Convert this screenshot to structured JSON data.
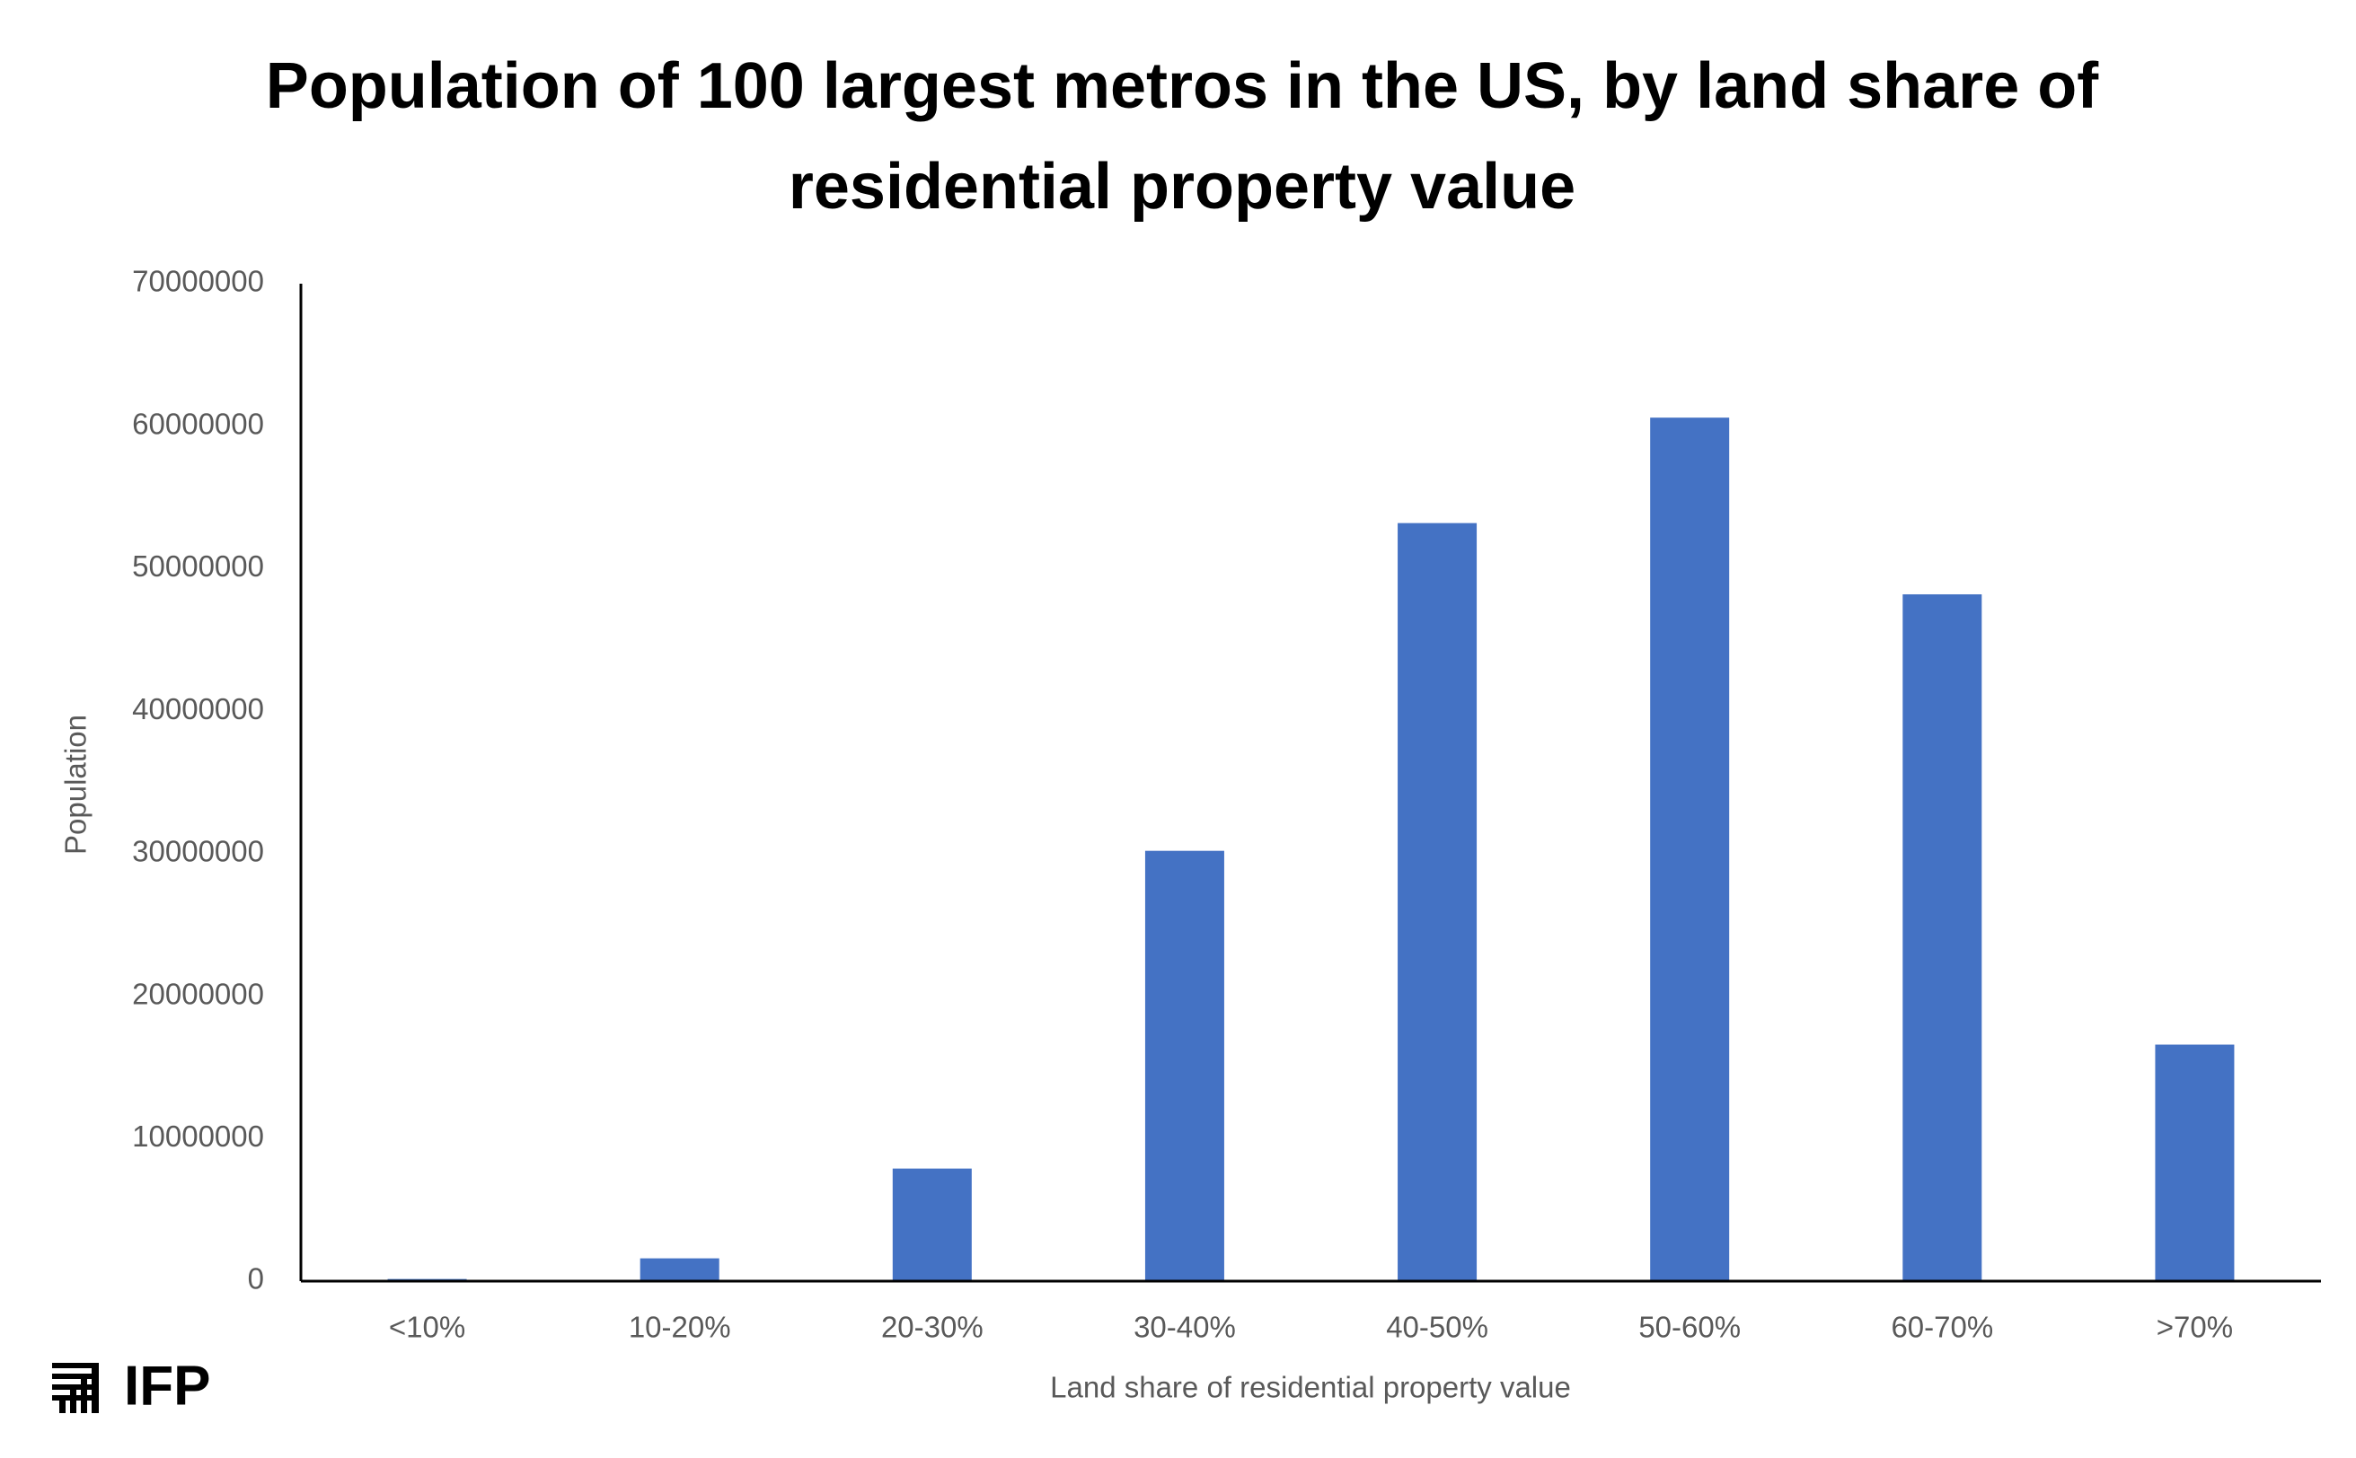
{
  "chart_data": {
    "type": "bar",
    "title": "Population of 100 largest metros in the US, by land share of residential property value",
    "x_label": "Land share of residential property value",
    "y_label": "Population",
    "categories": [
      "<10%",
      "10-20%",
      "20-30%",
      "30-40%",
      "40-50%",
      "50-60%",
      "60-70%",
      ">70%"
    ],
    "values": [
      150000,
      1600000,
      7900000,
      30200000,
      53200000,
      60600000,
      48200000,
      16600000
    ],
    "color": "#4472c4",
    "ylim": [
      0,
      70000000
    ],
    "yticks": [
      0,
      10000000,
      20000000,
      30000000,
      40000000,
      50000000,
      60000000,
      70000000
    ],
    "grid": false
  },
  "logo": "IFP"
}
